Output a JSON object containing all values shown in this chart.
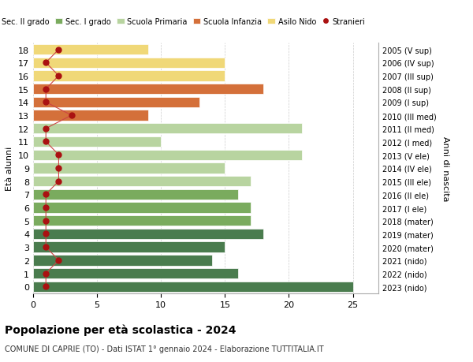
{
  "ages": [
    18,
    17,
    16,
    15,
    14,
    13,
    12,
    11,
    10,
    9,
    8,
    7,
    6,
    5,
    4,
    3,
    2,
    1,
    0
  ],
  "right_labels": [
    "2005 (V sup)",
    "2006 (IV sup)",
    "2007 (III sup)",
    "2008 (II sup)",
    "2009 (I sup)",
    "2010 (III med)",
    "2011 (II med)",
    "2012 (I med)",
    "2013 (V ele)",
    "2014 (IV ele)",
    "2015 (III ele)",
    "2016 (II ele)",
    "2017 (I ele)",
    "2018 (mater)",
    "2019 (mater)",
    "2020 (mater)",
    "2021 (nido)",
    "2022 (nido)",
    "2023 (nido)"
  ],
  "bar_values": [
    25,
    16,
    14,
    15,
    18,
    17,
    17,
    16,
    17,
    15,
    21,
    10,
    21,
    9,
    13,
    18,
    15,
    15,
    9
  ],
  "bar_colors": [
    "#4a7c4e",
    "#4a7c4e",
    "#4a7c4e",
    "#4a7c4e",
    "#4a7c4e",
    "#7aab5e",
    "#7aab5e",
    "#7aab5e",
    "#b8d4a0",
    "#b8d4a0",
    "#b8d4a0",
    "#b8d4a0",
    "#b8d4a0",
    "#d4703a",
    "#d4703a",
    "#d4703a",
    "#f0d878",
    "#f0d878",
    "#f0d878"
  ],
  "stranieri_values": [
    1,
    1,
    2,
    1,
    1,
    1,
    1,
    1,
    2,
    2,
    2,
    1,
    1,
    3,
    1,
    1,
    2,
    1,
    2
  ],
  "legend_labels": [
    "Sec. II grado",
    "Sec. I grado",
    "Scuola Primaria",
    "Scuola Infanzia",
    "Asilo Nido",
    "Stranieri"
  ],
  "legend_colors": [
    "#4a7c4e",
    "#7aab5e",
    "#b8d4a0",
    "#d4703a",
    "#f0d878",
    "#aa1111"
  ],
  "ylabel": "Età alunni",
  "right_ylabel": "Anni di nascita",
  "title": "Popolazione per età scolastica - 2024",
  "subtitle": "COMUNE DI CAPRIE (TO) - Dati ISTAT 1° gennaio 2024 - Elaborazione TUTTITALIA.IT",
  "xlim": [
    0,
    27
  ],
  "background_color": "#ffffff",
  "grid_color": "#cccccc"
}
